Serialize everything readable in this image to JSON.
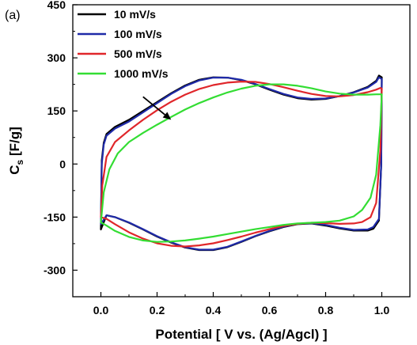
{
  "panel_label": "(a)",
  "chart_data": {
    "type": "line",
    "title": "",
    "xlabel": "Potential [ V vs. (Ag/Agcl) ]",
    "ylabel_main": "C",
    "ylabel_sub": "s",
    "ylabel_unit": " [F/g]",
    "xlim": [
      -0.1,
      1.1
    ],
    "ylim": [
      -375,
      450
    ],
    "x_ticks": [
      0.0,
      0.2,
      0.4,
      0.6,
      0.8,
      1.0
    ],
    "x_tick_labels": [
      "0.0",
      "0.2",
      "0.4",
      "0.6",
      "0.8",
      "1.0"
    ],
    "y_ticks": [
      -300,
      -150,
      0,
      150,
      300,
      450
    ],
    "y_tick_labels": [
      "-300",
      "-150",
      "0",
      "150",
      "300",
      "450"
    ],
    "grid": false,
    "legend_position": "top-left",
    "annotation": {
      "type": "arrow",
      "from": [
        0.15,
        190
      ],
      "to": [
        0.25,
        125
      ]
    },
    "series": [
      {
        "name": "10 mV/s",
        "color": "#000000",
        "upper": {
          "x": [
            0.0,
            0.003,
            0.01,
            0.02,
            0.05,
            0.1,
            0.15,
            0.2,
            0.25,
            0.3,
            0.35,
            0.4,
            0.45,
            0.5,
            0.55,
            0.6,
            0.65,
            0.7,
            0.75,
            0.8,
            0.85,
            0.9,
            0.95,
            0.98,
            0.99,
            1.0
          ],
          "y": [
            -185,
            10,
            60,
            85,
            105,
            125,
            150,
            175,
            200,
            222,
            238,
            245,
            244,
            237,
            225,
            210,
            196,
            186,
            182,
            184,
            192,
            203,
            218,
            235,
            250,
            245
          ]
        },
        "lower": {
          "x": [
            1.0,
            0.998,
            0.99,
            0.97,
            0.95,
            0.9,
            0.85,
            0.8,
            0.75,
            0.7,
            0.65,
            0.6,
            0.55,
            0.5,
            0.45,
            0.4,
            0.35,
            0.3,
            0.25,
            0.2,
            0.15,
            0.1,
            0.05,
            0.02,
            0.0
          ],
          "y": [
            245,
            0,
            -160,
            -183,
            -188,
            -188,
            -182,
            -174,
            -168,
            -170,
            -178,
            -190,
            -204,
            -220,
            -235,
            -243,
            -243,
            -236,
            -222,
            -205,
            -185,
            -166,
            -150,
            -145,
            -185
          ]
        }
      },
      {
        "name": "100 mV/s",
        "color": "#1f2aa8",
        "upper": {
          "x": [
            0.0,
            0.003,
            0.01,
            0.02,
            0.05,
            0.1,
            0.15,
            0.2,
            0.25,
            0.3,
            0.35,
            0.4,
            0.45,
            0.5,
            0.55,
            0.6,
            0.65,
            0.7,
            0.75,
            0.8,
            0.85,
            0.9,
            0.95,
            0.98,
            0.99,
            1.0
          ],
          "y": [
            -170,
            0,
            55,
            80,
            100,
            120,
            146,
            172,
            198,
            220,
            236,
            244,
            244,
            238,
            226,
            212,
            198,
            188,
            184,
            185,
            192,
            202,
            216,
            232,
            245,
            240
          ]
        },
        "lower": {
          "x": [
            1.0,
            0.998,
            0.99,
            0.97,
            0.95,
            0.9,
            0.85,
            0.8,
            0.75,
            0.7,
            0.65,
            0.6,
            0.55,
            0.5,
            0.45,
            0.4,
            0.35,
            0.3,
            0.25,
            0.2,
            0.15,
            0.1,
            0.05,
            0.02,
            0.0
          ],
          "y": [
            240,
            0,
            -155,
            -178,
            -185,
            -186,
            -180,
            -172,
            -167,
            -169,
            -177,
            -189,
            -203,
            -219,
            -234,
            -242,
            -242,
            -235,
            -221,
            -204,
            -184,
            -165,
            -150,
            -145,
            -170
          ]
        }
      },
      {
        "name": "500 mV/s",
        "color": "#e0262a",
        "upper": {
          "x": [
            0.0,
            0.005,
            0.02,
            0.05,
            0.1,
            0.15,
            0.2,
            0.25,
            0.3,
            0.35,
            0.4,
            0.45,
            0.5,
            0.55,
            0.6,
            0.65,
            0.7,
            0.75,
            0.8,
            0.85,
            0.9,
            0.95,
            0.98,
            0.995,
            1.0
          ],
          "y": [
            -150,
            -60,
            20,
            62,
            95,
            125,
            152,
            176,
            196,
            212,
            223,
            230,
            233,
            232,
            226,
            217,
            207,
            198,
            192,
            191,
            195,
            203,
            210,
            215,
            213
          ]
        },
        "lower": {
          "x": [
            1.0,
            0.995,
            0.98,
            0.96,
            0.93,
            0.9,
            0.85,
            0.8,
            0.75,
            0.7,
            0.65,
            0.6,
            0.55,
            0.5,
            0.45,
            0.4,
            0.35,
            0.3,
            0.25,
            0.2,
            0.15,
            0.1,
            0.05,
            0.02,
            0.0
          ],
          "y": [
            213,
            40,
            -110,
            -150,
            -164,
            -168,
            -169,
            -167,
            -166,
            -169,
            -175,
            -184,
            -194,
            -205,
            -215,
            -224,
            -230,
            -233,
            -231,
            -224,
            -211,
            -193,
            -170,
            -155,
            -150
          ]
        }
      },
      {
        "name": "1000 mV/s",
        "color": "#33dd33",
        "upper": {
          "x": [
            0.0,
            0.01,
            0.03,
            0.06,
            0.1,
            0.15,
            0.2,
            0.25,
            0.3,
            0.35,
            0.4,
            0.45,
            0.5,
            0.55,
            0.6,
            0.65,
            0.7,
            0.75,
            0.8,
            0.85,
            0.9,
            0.95,
            0.98,
            1.0
          ],
          "y": [
            -165,
            -80,
            -15,
            30,
            62,
            88,
            111,
            133,
            154,
            172,
            188,
            202,
            213,
            221,
            225,
            225,
            221,
            214,
            205,
            199,
            196,
            196,
            197,
            197
          ]
        },
        "lower": {
          "x": [
            1.0,
            0.995,
            0.98,
            0.96,
            0.93,
            0.9,
            0.85,
            0.8,
            0.75,
            0.7,
            0.65,
            0.6,
            0.55,
            0.5,
            0.45,
            0.4,
            0.35,
            0.3,
            0.25,
            0.2,
            0.15,
            0.1,
            0.05,
            0.02,
            0.0
          ],
          "y": [
            197,
            110,
            -30,
            -95,
            -130,
            -148,
            -160,
            -164,
            -166,
            -168,
            -172,
            -178,
            -184,
            -191,
            -198,
            -205,
            -211,
            -216,
            -219,
            -220,
            -216,
            -206,
            -189,
            -174,
            -165
          ]
        }
      }
    ]
  }
}
